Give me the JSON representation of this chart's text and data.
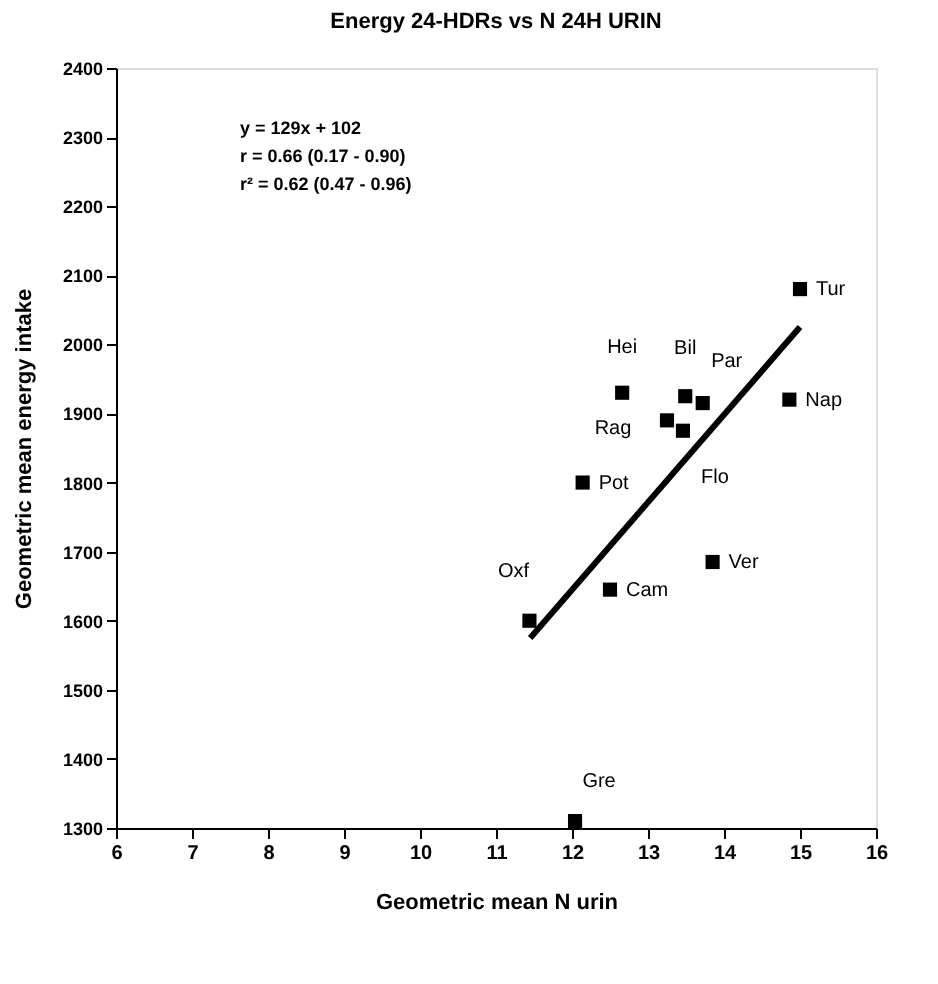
{
  "chart_data": {
    "type": "scatter",
    "title": "Energy 24-HDRs vs N 24H URIN",
    "xlabel": "Geometric mean N urin",
    "ylabel": "Geometric mean energy intake",
    "xlim": [
      6,
      16
    ],
    "xticks": [
      6,
      7,
      8,
      9,
      10,
      11,
      12,
      13,
      14,
      15,
      16
    ],
    "ylim": [
      1300,
      2400
    ],
    "yticks": [
      1300,
      1400,
      1500,
      1600,
      1700,
      1800,
      1900,
      2000,
      2100,
      2200,
      2300,
      2400
    ],
    "grid": false,
    "series": [
      {
        "marker": "square",
        "color": "#000000",
        "x": [
          12.66,
          13.49,
          13.72,
          13.25,
          13.46,
          12.14,
          13.85,
          12.5,
          11.44,
          12.04,
          15.0,
          14.86
        ],
        "values": [
          1930,
          1925,
          1915,
          1890,
          1875,
          1800,
          1685,
          1645,
          1600,
          1310,
          2080,
          1920
        ]
      },
      {
        "type": "line",
        "color": "#000000",
        "x": [
          11.45,
          15.0
        ],
        "values": [
          1575,
          2025
        ]
      }
    ],
    "annotations": [
      "y = 129x + 102",
      "r = 0.66 (0.17 - 0.90)",
      "r² = 0.62 (0.47 - 0.96)",
      {
        "text": "Hei",
        "x": 12.66,
        "y": 1930
      },
      {
        "text": "Bil",
        "x": 13.49,
        "y": 1925
      },
      {
        "text": "Par",
        "x": 13.72,
        "y": 1915
      },
      {
        "text": "Rag",
        "x": 13.25,
        "y": 1890
      },
      {
        "text": "Flo",
        "x": 13.46,
        "y": 1875
      },
      {
        "text": "Pot",
        "x": 12.14,
        "y": 1800
      },
      {
        "text": "Ver",
        "x": 13.85,
        "y": 1685
      },
      {
        "text": "Cam",
        "x": 12.5,
        "y": 1645
      },
      {
        "text": "Oxf",
        "x": 11.44,
        "y": 1600
      },
      {
        "text": "Gre",
        "x": 12.04,
        "y": 1310
      },
      {
        "text": "Tur",
        "x": 15.0,
        "y": 2080
      },
      {
        "text": "Nap",
        "x": 14.86,
        "y": 1920
      }
    ]
  }
}
